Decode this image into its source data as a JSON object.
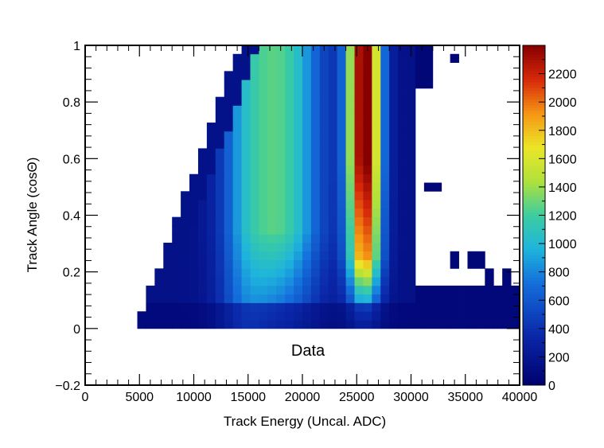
{
  "chart_data": {
    "type": "heatmap",
    "title": "",
    "xlabel": "Track Energy (Uncal. ADC)",
    "ylabel": "Track Angle (cosΘ)",
    "annotation": "Data",
    "xlim": [
      0,
      40000
    ],
    "ylim": [
      -0.2,
      1.0
    ],
    "x_ticks": [
      0,
      5000,
      10000,
      15000,
      20000,
      25000,
      30000,
      35000,
      40000
    ],
    "x_tick_labels": [
      "0",
      "5000",
      "10000",
      "15000",
      "20000",
      "25000",
      "30000",
      "35000",
      "40000"
    ],
    "y_ticks": [
      -0.2,
      0,
      0.2,
      0.4,
      0.6,
      0.8,
      1
    ],
    "y_tick_labels": [
      "−0.2",
      "0",
      "0.2",
      "0.4",
      "0.6",
      "0.8",
      "1"
    ],
    "colorbar": {
      "range": [
        0,
        2400
      ],
      "ticks": [
        0,
        200,
        400,
        600,
        800,
        1000,
        1200,
        1400,
        1600,
        1800,
        2000,
        2200
      ],
      "tick_labels": [
        "0",
        "200",
        "400",
        "600",
        "800",
        "1000",
        "1200",
        "1400",
        "1600",
        "1800",
        "2000",
        "2200"
      ],
      "colormap": "rainbow (dark blue → cyan → yellow → red → dark red)"
    },
    "bins": {
      "x_start": 0,
      "x_end": 40000,
      "x_count": 50,
      "y_start": 0,
      "y_end": 1.0,
      "y_count": 33
    },
    "grid": false,
    "legend": "none"
  }
}
